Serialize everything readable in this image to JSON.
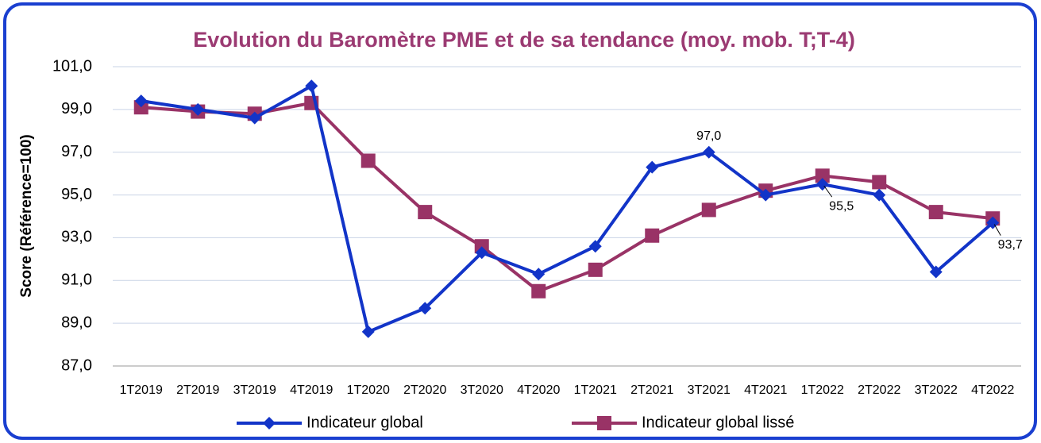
{
  "chart_data": {
    "type": "line",
    "title": "Evolution du Baromètre PME et de sa tendance (moy. mob. T;T-4)",
    "y_label": "Score (Référence=100)",
    "categories": [
      "1T2019",
      "2T2019",
      "3T2019",
      "4T2019",
      "1T2020",
      "2T2020",
      "3T2020",
      "4T2020",
      "1T2021",
      "2T2021",
      "3T2021",
      "4T2021",
      "1T2022",
      "2T2022",
      "3T2022",
      "4T2022"
    ],
    "series": [
      {
        "name": "Indicateur global",
        "color": "#1234c8",
        "marker": "diamond",
        "values": [
          99.4,
          99.0,
          98.6,
          100.1,
          88.6,
          89.7,
          92.3,
          91.3,
          92.6,
          96.3,
          97.0,
          95.0,
          95.5,
          95.0,
          91.4,
          93.7
        ],
        "value_labels": [
          null,
          null,
          null,
          null,
          null,
          null,
          null,
          null,
          null,
          null,
          "97,0",
          null,
          "95,5",
          null,
          null,
          "93,7"
        ]
      },
      {
        "name": "Indicateur global lissé",
        "color": "#993366",
        "marker": "square",
        "values": [
          99.1,
          98.9,
          98.8,
          99.3,
          96.6,
          94.2,
          92.6,
          90.5,
          91.5,
          93.1,
          94.3,
          95.2,
          95.9,
          95.6,
          94.2,
          93.9
        ]
      }
    ],
    "ylim": [
      87,
      101
    ],
    "yticks": [
      {
        "value": 87,
        "label": "87,0"
      },
      {
        "value": 89,
        "label": "89,0"
      },
      {
        "value": 91,
        "label": "91,0"
      },
      {
        "value": 93,
        "label": "93,0"
      },
      {
        "value": 95,
        "label": "95,0"
      },
      {
        "value": 97,
        "label": "97,0"
      },
      {
        "value": 99,
        "label": "99,0"
      },
      {
        "value": 101,
        "label": "101,0"
      }
    ],
    "grid": true,
    "legend": "bottom"
  }
}
